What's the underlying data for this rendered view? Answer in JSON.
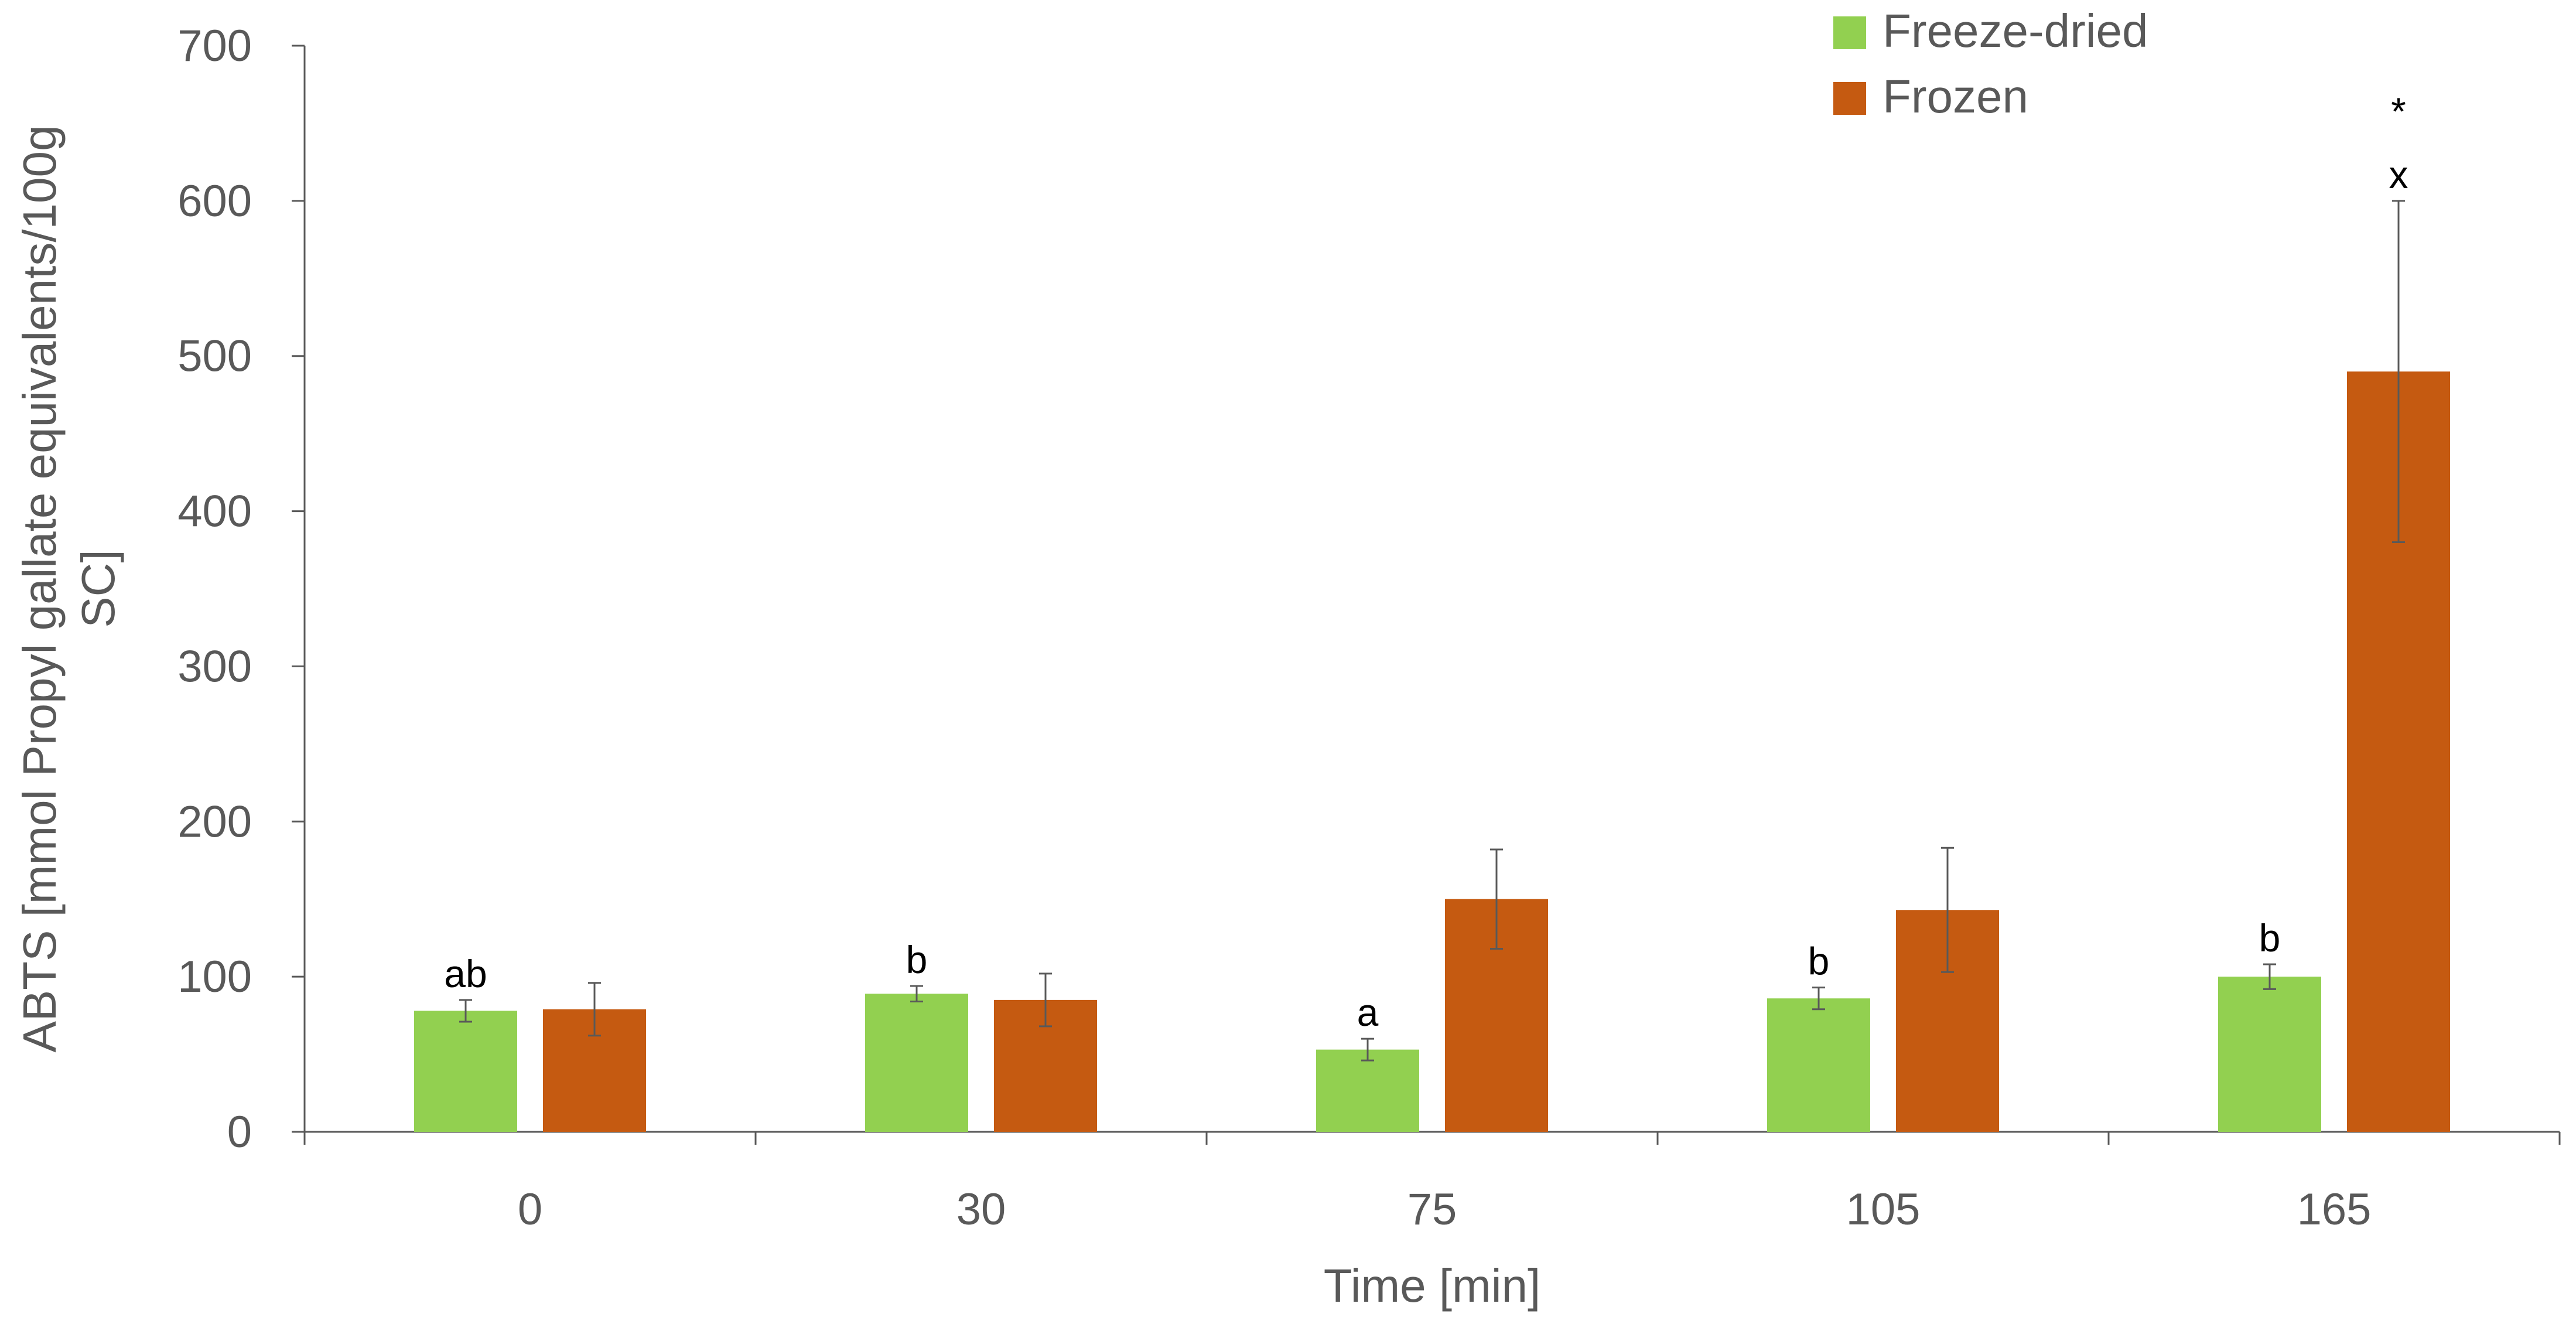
{
  "chart_data": {
    "type": "bar",
    "title": "",
    "xlabel": "Time [min]",
    "ylabel_lines": [
      "ABTS [mmol Propyl gallate equivalents/100g",
      "SC]"
    ],
    "categories": [
      "0",
      "30",
      "75",
      "105",
      "165"
    ],
    "ylim": [
      0,
      700
    ],
    "yticks": [
      0,
      100,
      200,
      300,
      400,
      500,
      600,
      700
    ],
    "grid": false,
    "legend_position": "top-right",
    "series": [
      {
        "name": "Freeze-dried",
        "color": "#92D050",
        "values": [
          78,
          89,
          53,
          86,
          100
        ],
        "errors": [
          7,
          5,
          7,
          7,
          8
        ],
        "labels": [
          "ab",
          "b",
          "a",
          "b",
          "b"
        ]
      },
      {
        "name": "Frozen",
        "color": "#C55A11",
        "values": [
          79,
          85,
          150,
          143,
          490
        ],
        "errors": [
          17,
          17,
          32,
          40,
          110
        ],
        "labels": [
          "",
          "",
          "",
          "",
          "x"
        ]
      }
    ],
    "annotations": [
      {
        "text": "*",
        "category": "165",
        "series": "Frozen"
      }
    ]
  }
}
